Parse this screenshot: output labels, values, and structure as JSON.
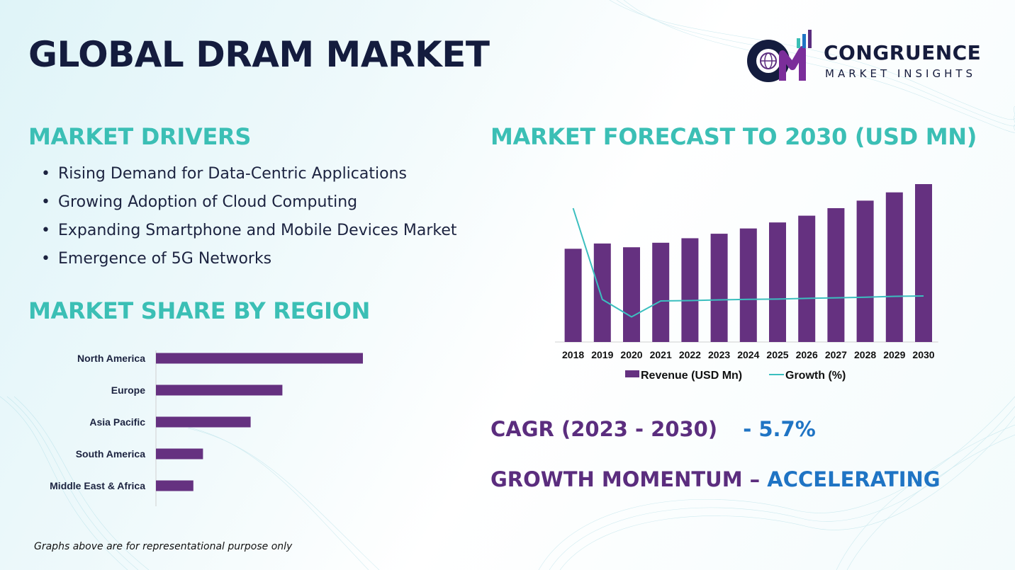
{
  "title": "GLOBAL DRAM MARKET",
  "brand": {
    "name": "CONGRUENCE",
    "tagline": "MARKET INSIGHTS"
  },
  "drivers": {
    "heading": "MARKET DRIVERS",
    "items": [
      "Rising Demand for Data-Centric Applications",
      "Growing Adoption of Cloud Computing",
      "Expanding Smartphone and Mobile Devices Market",
      "Emergence of 5G Networks"
    ]
  },
  "region": {
    "heading": "MARKET SHARE BY REGION"
  },
  "forecast": {
    "heading": "MARKET FORECAST TO 2030 (USD MN)"
  },
  "kpis": {
    "cagr_label": "CAGR (2023 - 2030)",
    "cagr_value": "- 5.7%",
    "momentum_label": "GROWTH MOMENTUM –",
    "momentum_value": "ACCELERATING"
  },
  "footnote": "Graphs above are for representational purpose only",
  "colors": {
    "bar": "#653180",
    "line": "#3bbfbf",
    "heading": "#3bbfb5",
    "title": "#141c3e",
    "kpi_label": "#5b2d7e",
    "kpi_value": "#1f74c4"
  },
  "chart_data": [
    {
      "type": "bar",
      "orientation": "horizontal",
      "categories": [
        "North America",
        "Europe",
        "Asia Pacific",
        "South America",
        "Middle East & Africa"
      ],
      "values": [
        36.5,
        22.3,
        16.7,
        8.3,
        6.6
      ],
      "xlim": [
        0,
        40
      ],
      "grid": false
    },
    {
      "type": "bar",
      "categories": [
        "2018",
        "2019",
        "2020",
        "2021",
        "2022",
        "2023",
        "2024",
        "2025",
        "2026",
        "2027",
        "2028",
        "2029",
        "2030"
      ],
      "series": [
        {
          "name": "Revenue (USD Mn)",
          "type": "bar",
          "values": [
            62,
            65.5,
            63,
            66,
            69,
            72,
            75.5,
            79.5,
            84,
            89,
            94,
            99.5,
            105
          ]
        },
        {
          "name": "Growth (%)",
          "type": "line",
          "values": [
            55,
            5.6,
            -3.8,
            4.8,
            5.0,
            5.4,
            5.7,
            5.8,
            6.2,
            6.5,
            6.8,
            7.3,
            7.5
          ]
        }
      ],
      "ylim_bars": [
        0,
        105
      ],
      "legend": "bottom",
      "grid": false
    }
  ]
}
